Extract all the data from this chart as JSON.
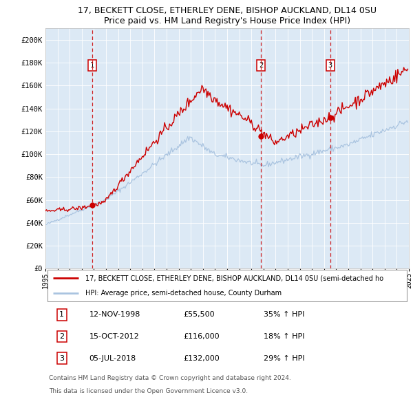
{
  "title_line1": "17, BECKETT CLOSE, ETHERLEY DENE, BISHOP AUCKLAND, DL14 0SU",
  "title_line2": "Price paid vs. HM Land Registry's House Price Index (HPI)",
  "bg_color": "#dce9f5",
  "line1_color": "#cc0000",
  "line2_color": "#aac4e0",
  "vline_color": "#cc0000",
  "sale_dates": [
    "1998-11-12",
    "2012-10-15",
    "2018-07-05"
  ],
  "sale_prices": [
    55500,
    116000,
    132000
  ],
  "sale_labels": [
    "1",
    "2",
    "3"
  ],
  "legend_line1": "17, BECKETT CLOSE, ETHERLEY DENE, BISHOP AUCKLAND, DL14 0SU (semi-detached ho",
  "legend_line2": "HPI: Average price, semi-detached house, County Durham",
  "table_rows": [
    [
      "1",
      "12-NOV-1998",
      "£55,500",
      "35% ↑ HPI"
    ],
    [
      "2",
      "15-OCT-2012",
      "£116,000",
      "18% ↑ HPI"
    ],
    [
      "3",
      "05-JUL-2018",
      "£132,000",
      "29% ↑ HPI"
    ]
  ],
  "footer_line1": "Contains HM Land Registry data © Crown copyright and database right 2024.",
  "footer_line2": "This data is licensed under the Open Government Licence v3.0.",
  "ylim_max": 210000,
  "yticks": [
    0,
    20000,
    40000,
    60000,
    80000,
    100000,
    120000,
    140000,
    160000,
    180000,
    200000
  ],
  "ytick_labels": [
    "£0",
    "£20K",
    "£40K",
    "£60K",
    "£80K",
    "£100K",
    "£120K",
    "£140K",
    "£160K",
    "£180K",
    "£200K"
  ],
  "xstart_year": 1995,
  "xend_year": 2025
}
